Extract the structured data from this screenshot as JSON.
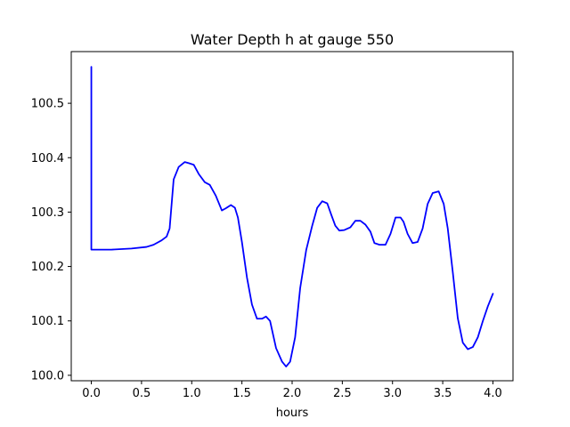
{
  "chart_data": {
    "type": "line",
    "title": "Water Depth h at gauge 550",
    "xlabel": "hours",
    "ylabel": "",
    "xlim": [
      -0.2,
      4.2
    ],
    "ylim": [
      99.99,
      100.595
    ],
    "grid": false,
    "x_ticks": [
      {
        "value": 0.0,
        "label": "0.0"
      },
      {
        "value": 0.5,
        "label": "0.5"
      },
      {
        "value": 1.0,
        "label": "1.0"
      },
      {
        "value": 1.5,
        "label": "1.5"
      },
      {
        "value": 2.0,
        "label": "2.0"
      },
      {
        "value": 2.5,
        "label": "2.5"
      },
      {
        "value": 3.0,
        "label": "3.0"
      },
      {
        "value": 3.5,
        "label": "3.5"
      },
      {
        "value": 4.0,
        "label": "4.0"
      }
    ],
    "y_ticks": [
      {
        "value": 100.0,
        "label": "100.0"
      },
      {
        "value": 100.1,
        "label": "100.1"
      },
      {
        "value": 100.2,
        "label": "100.2"
      },
      {
        "value": 100.3,
        "label": "100.3"
      },
      {
        "value": 100.4,
        "label": "100.4"
      },
      {
        "value": 100.5,
        "label": "100.5"
      }
    ],
    "series": [
      {
        "color": "#0000ff",
        "x": [
          0.0,
          0.0,
          0.2,
          0.4,
          0.55,
          0.62,
          0.7,
          0.75,
          0.78,
          0.82,
          0.87,
          0.93,
          0.97,
          1.02,
          1.07,
          1.13,
          1.18,
          1.24,
          1.3,
          1.34,
          1.39,
          1.43,
          1.46,
          1.5,
          1.55,
          1.6,
          1.65,
          1.7,
          1.74,
          1.78,
          1.84,
          1.9,
          1.94,
          1.98,
          2.03,
          2.08,
          2.14,
          2.2,
          2.25,
          2.3,
          2.35,
          2.39,
          2.43,
          2.47,
          2.52,
          2.58,
          2.63,
          2.68,
          2.73,
          2.78,
          2.82,
          2.87,
          2.93,
          2.98,
          3.03,
          3.08,
          3.11,
          3.15,
          3.2,
          3.25,
          3.3,
          3.35,
          3.4,
          3.46,
          3.51,
          3.55,
          3.6,
          3.65,
          3.7,
          3.75,
          3.8,
          3.85,
          3.9,
          3.95,
          4.0
        ],
        "y": [
          100.567,
          100.231,
          100.231,
          100.233,
          100.236,
          100.24,
          100.248,
          100.255,
          100.27,
          100.36,
          100.383,
          100.392,
          100.39,
          100.387,
          100.37,
          100.355,
          100.35,
          100.33,
          100.303,
          100.307,
          100.313,
          100.308,
          100.29,
          100.245,
          100.18,
          100.13,
          100.104,
          100.104,
          100.108,
          100.1,
          100.05,
          100.025,
          100.016,
          100.025,
          100.07,
          100.16,
          100.23,
          100.275,
          100.308,
          100.32,
          100.316,
          100.295,
          100.275,
          100.266,
          100.267,
          100.272,
          100.284,
          100.284,
          100.277,
          100.264,
          100.243,
          100.24,
          100.24,
          100.26,
          100.29,
          100.29,
          100.282,
          100.26,
          100.243,
          100.245,
          100.27,
          100.315,
          100.335,
          100.338,
          100.315,
          100.27,
          100.19,
          100.105,
          100.06,
          100.048,
          100.052,
          100.07,
          100.1,
          100.127,
          100.15
        ]
      }
    ]
  }
}
